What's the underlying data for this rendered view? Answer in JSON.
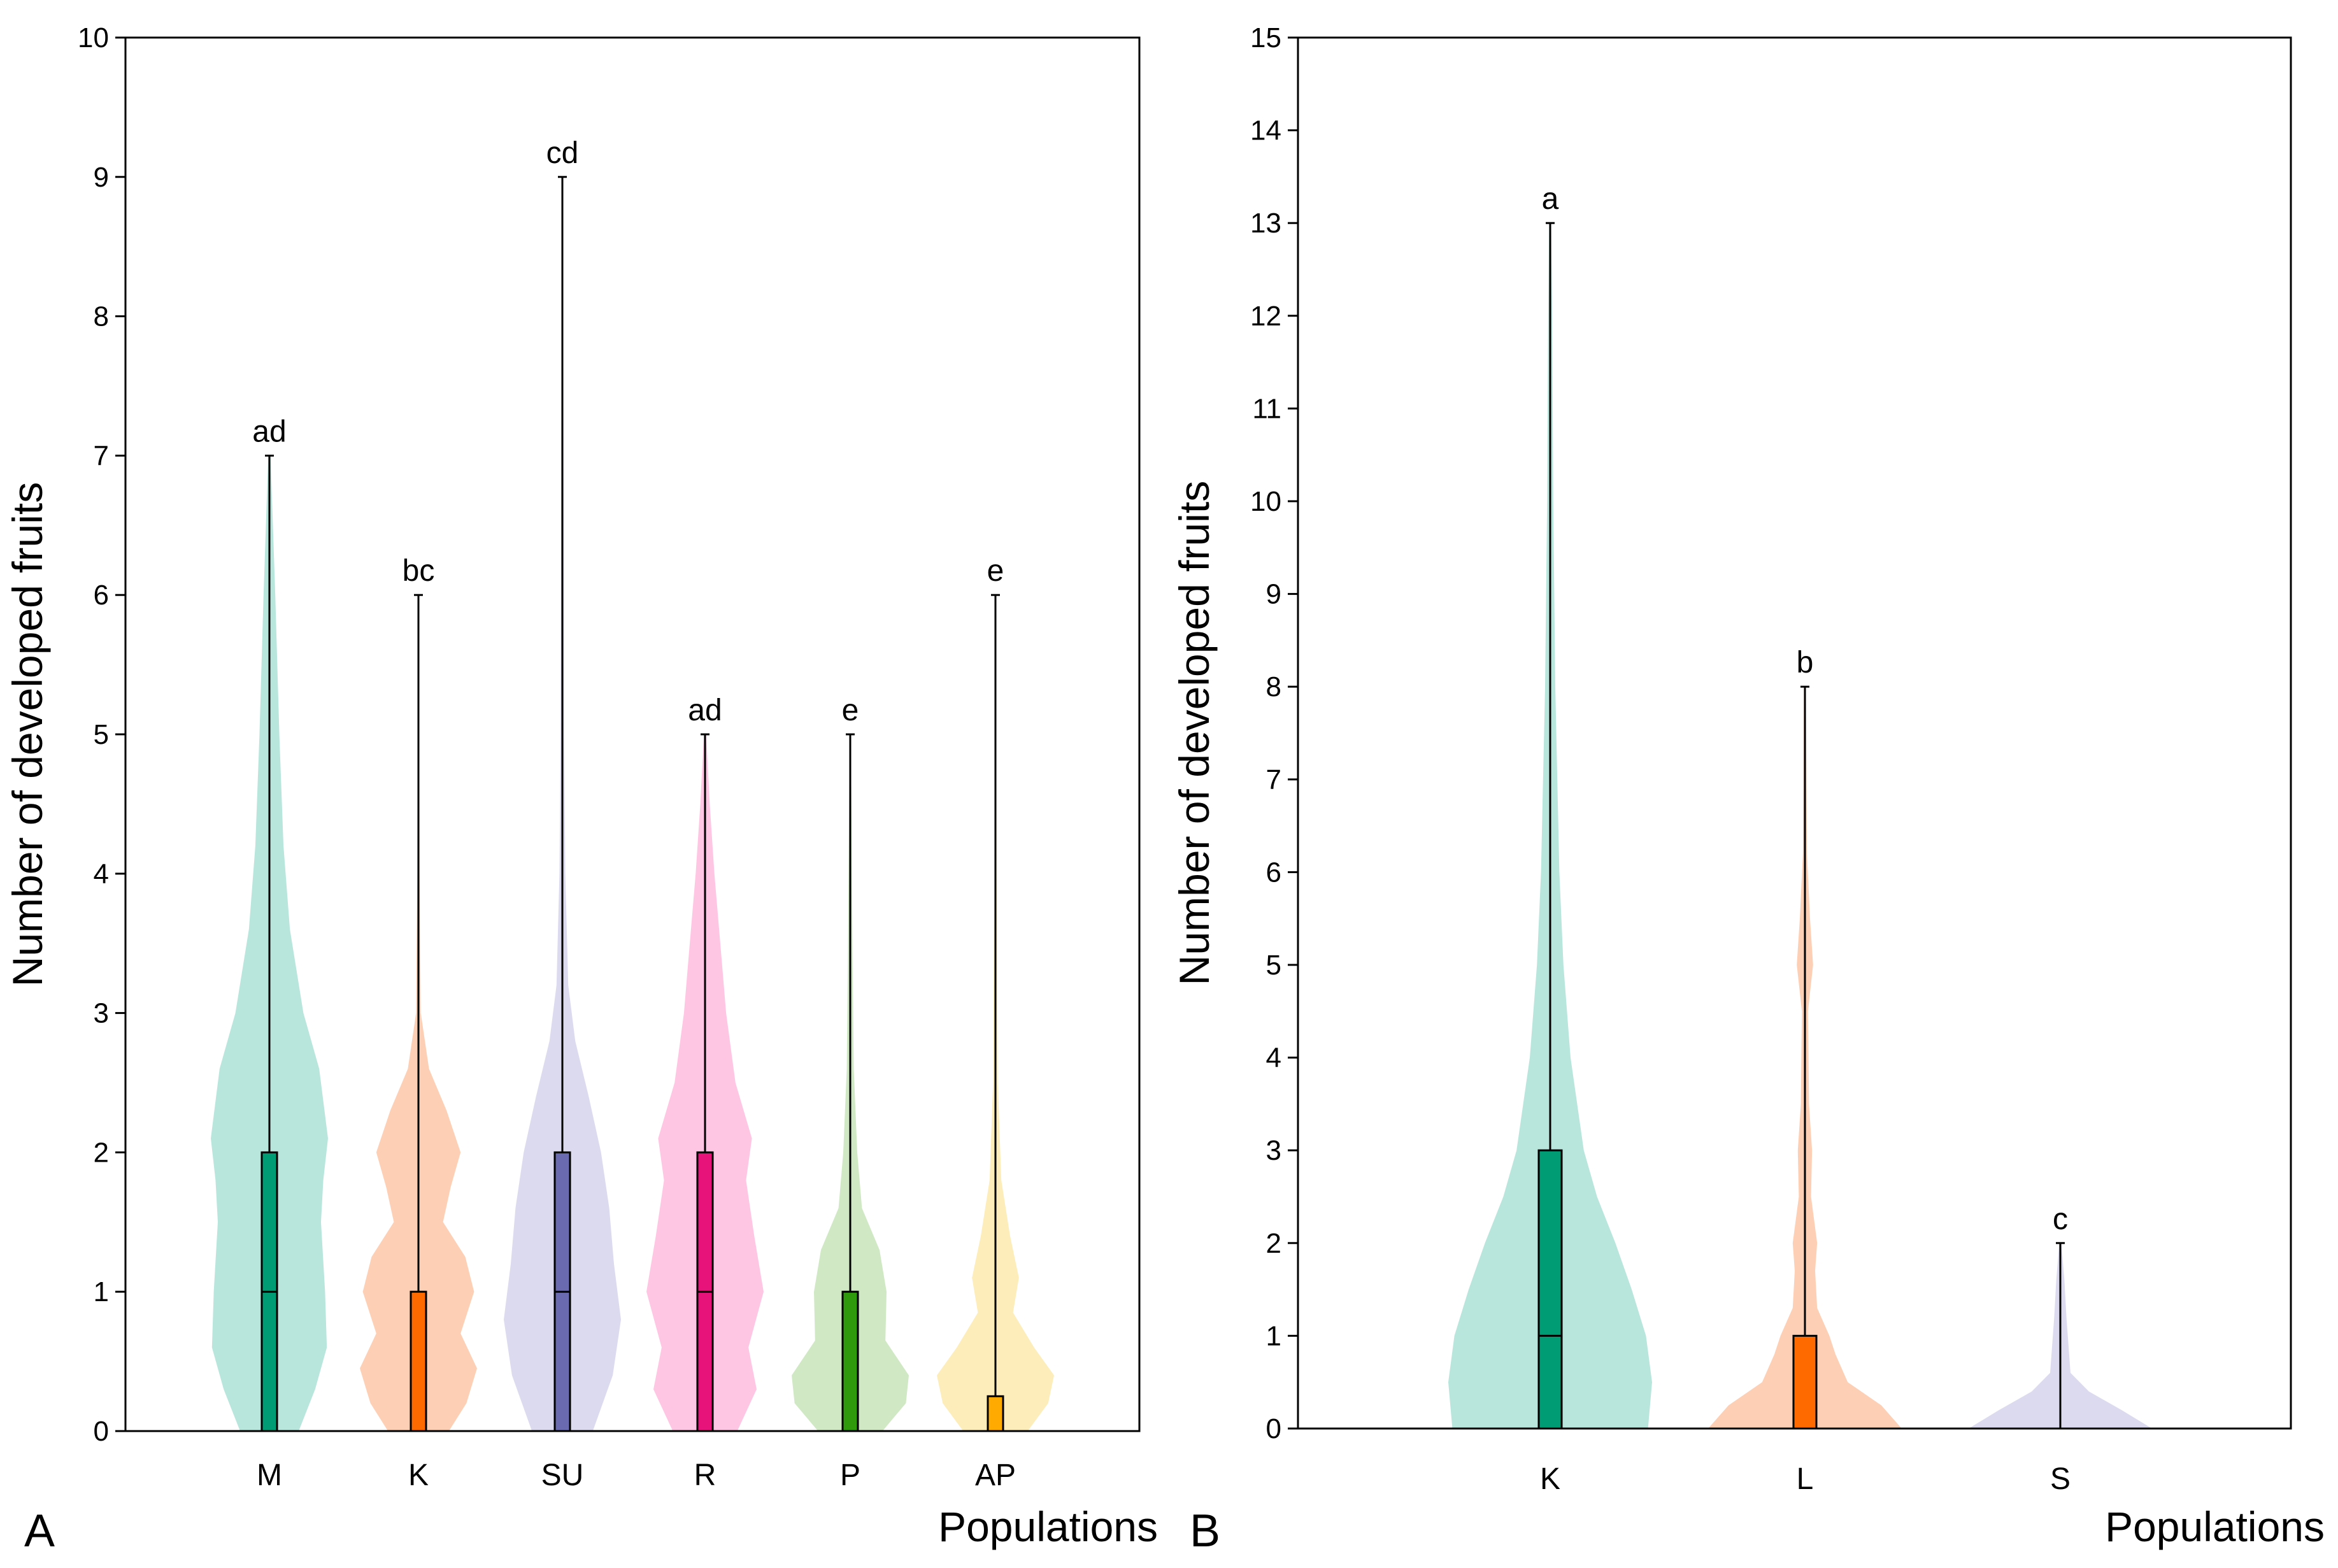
{
  "chart_data": [
    {
      "type": "violin",
      "panel": "A",
      "xlabel": "Populations",
      "ylabel": "Number of developed fruits",
      "ylim": [
        0,
        10
      ],
      "yticks": [
        "0",
        "1",
        "2",
        "3",
        "4",
        "5",
        "6",
        "7",
        "8",
        "9",
        "10"
      ],
      "categories": [
        "M",
        "K",
        "SU",
        "R",
        "P",
        "AP"
      ],
      "series": [
        {
          "name": "M",
          "min": 0,
          "q1": 0,
          "median": 1,
          "q3": 2,
          "max": 7,
          "sig": "ad",
          "violin_color": "#b9e6dc",
          "box_color": "#009c74",
          "density": [
            [
              0,
              0.5
            ],
            [
              0.3,
              0.78
            ],
            [
              0.6,
              0.98
            ],
            [
              1.0,
              0.95
            ],
            [
              1.5,
              0.88
            ],
            [
              1.8,
              0.92
            ],
            [
              2.1,
              1.0
            ],
            [
              2.6,
              0.85
            ],
            [
              3.0,
              0.58
            ],
            [
              3.6,
              0.35
            ],
            [
              4.2,
              0.24
            ],
            [
              5.0,
              0.17
            ],
            [
              6.0,
              0.1
            ],
            [
              7.0,
              0.02
            ]
          ]
        },
        {
          "name": "K",
          "min": 0,
          "q1": 0,
          "median": 0,
          "q3": 1,
          "max": 6,
          "sig": "bc",
          "violin_color": "#fdd0b6",
          "box_color": "#ff6a00",
          "density": [
            [
              0,
              0.52
            ],
            [
              0.2,
              0.82
            ],
            [
              0.45,
              1.0
            ],
            [
              0.7,
              0.72
            ],
            [
              1.0,
              0.95
            ],
            [
              1.25,
              0.8
            ],
            [
              1.5,
              0.42
            ],
            [
              1.75,
              0.55
            ],
            [
              2.0,
              0.72
            ],
            [
              2.3,
              0.48
            ],
            [
              2.6,
              0.18
            ],
            [
              3.0,
              0.04
            ],
            [
              4.0,
              0.02
            ],
            [
              6.0,
              0.01
            ]
          ]
        },
        {
          "name": "SU",
          "min": 0,
          "q1": 0,
          "median": 1,
          "q3": 2,
          "max": 9,
          "sig": "cd",
          "violin_color": "#dcdaef",
          "box_color": "#6a6ab0",
          "density": [
            [
              0,
              0.52
            ],
            [
              0.4,
              0.86
            ],
            [
              0.8,
              1.0
            ],
            [
              1.2,
              0.88
            ],
            [
              1.6,
              0.8
            ],
            [
              2.0,
              0.66
            ],
            [
              2.4,
              0.45
            ],
            [
              2.8,
              0.22
            ],
            [
              3.2,
              0.1
            ],
            [
              4.0,
              0.05
            ],
            [
              5.0,
              0.03
            ],
            [
              7.0,
              0.02
            ],
            [
              9.0,
              0.01
            ]
          ]
        },
        {
          "name": "R",
          "min": 0,
          "q1": 0,
          "median": 1,
          "q3": 2,
          "max": 5,
          "sig": "ad",
          "violin_color": "#ffc6e4",
          "box_color": "#e8127b",
          "density": [
            [
              0,
              0.55
            ],
            [
              0.3,
              0.88
            ],
            [
              0.6,
              0.74
            ],
            [
              1.0,
              1.0
            ],
            [
              1.4,
              0.84
            ],
            [
              1.8,
              0.7
            ],
            [
              2.1,
              0.8
            ],
            [
              2.5,
              0.52
            ],
            [
              3.0,
              0.36
            ],
            [
              3.4,
              0.28
            ],
            [
              4.0,
              0.16
            ],
            [
              4.5,
              0.08
            ],
            [
              5.0,
              0.02
            ]
          ]
        },
        {
          "name": "P",
          "min": 0,
          "q1": 0,
          "median": 0,
          "q3": 1,
          "max": 5,
          "sig": "e",
          "violin_color": "#d0e9c4",
          "box_color": "#2e9a0c",
          "density": [
            [
              0,
              0.55
            ],
            [
              0.2,
              0.95
            ],
            [
              0.4,
              1.0
            ],
            [
              0.65,
              0.6
            ],
            [
              1.0,
              0.62
            ],
            [
              1.3,
              0.5
            ],
            [
              1.6,
              0.2
            ],
            [
              2.0,
              0.12
            ],
            [
              2.6,
              0.06
            ],
            [
              3.4,
              0.04
            ],
            [
              5.0,
              0.01
            ]
          ]
        },
        {
          "name": "AP",
          "min": 0,
          "q1": 0,
          "median": 0,
          "q3": 0.25,
          "max": 6,
          "sig": "e",
          "violin_color": "#fdedba",
          "box_color": "#ffaa00",
          "density": [
            [
              0,
              0.55
            ],
            [
              0.2,
              0.9
            ],
            [
              0.4,
              1.0
            ],
            [
              0.6,
              0.66
            ],
            [
              0.85,
              0.3
            ],
            [
              1.1,
              0.4
            ],
            [
              1.4,
              0.25
            ],
            [
              1.8,
              0.1
            ],
            [
              2.5,
              0.04
            ],
            [
              4.0,
              0.02
            ],
            [
              6.0,
              0.01
            ]
          ]
        }
      ]
    },
    {
      "type": "violin",
      "panel": "B",
      "xlabel": "Populations",
      "ylabel": "Number of developed fruits",
      "ylim": [
        0,
        15
      ],
      "yticks": [
        "0",
        "1",
        "2",
        "3",
        "4",
        "5",
        "6",
        "7",
        "8",
        "9",
        "10",
        "11",
        "12",
        "13",
        "14",
        "15"
      ],
      "categories": [
        "K",
        "L",
        "S"
      ],
      "series": [
        {
          "name": "K",
          "min": 0,
          "q1": 0,
          "median": 1,
          "q3": 3,
          "max": 13,
          "sig": "a",
          "violin_color": "#b9e6dc",
          "box_color": "#009c74",
          "density": [
            [
              0,
              0.96
            ],
            [
              0.5,
              1.0
            ],
            [
              1.0,
              0.94
            ],
            [
              1.5,
              0.8
            ],
            [
              2.0,
              0.64
            ],
            [
              2.5,
              0.46
            ],
            [
              3.0,
              0.33
            ],
            [
              4.0,
              0.2
            ],
            [
              5.0,
              0.13
            ],
            [
              6.0,
              0.09
            ],
            [
              7.0,
              0.07
            ],
            [
              8.0,
              0.05
            ],
            [
              10.0,
              0.03
            ],
            [
              12.0,
              0.02
            ],
            [
              13.0,
              0.01
            ]
          ]
        },
        {
          "name": "L",
          "min": 0,
          "q1": 0,
          "median": 0,
          "q3": 1,
          "max": 8,
          "sig": "b",
          "violin_color": "#fdd0b6",
          "box_color": "#ff6a00",
          "density": [
            [
              0,
              0.95
            ],
            [
              0.25,
              0.75
            ],
            [
              0.5,
              0.42
            ],
            [
              0.8,
              0.3
            ],
            [
              1.0,
              0.24
            ],
            [
              1.3,
              0.12
            ],
            [
              1.7,
              0.1
            ],
            [
              2.0,
              0.12
            ],
            [
              2.5,
              0.06
            ],
            [
              3.0,
              0.07
            ],
            [
              3.5,
              0.04
            ],
            [
              4.5,
              0.03
            ],
            [
              5.0,
              0.08
            ],
            [
              5.5,
              0.05
            ],
            [
              6.2,
              0.02
            ],
            [
              8.0,
              0.01
            ]
          ]
        },
        {
          "name": "S",
          "min": 0,
          "q1": 0,
          "median": 0,
          "q3": 0,
          "max": 2,
          "sig": "c",
          "violin_color": "#dcdaef",
          "box_color": "#6a6ab0",
          "density": [
            [
              0,
              0.9
            ],
            [
              0.2,
              0.6
            ],
            [
              0.4,
              0.28
            ],
            [
              0.6,
              0.1
            ],
            [
              0.9,
              0.08
            ],
            [
              1.2,
              0.06
            ],
            [
              1.6,
              0.04
            ],
            [
              2.0,
              0.01
            ]
          ]
        }
      ]
    }
  ]
}
